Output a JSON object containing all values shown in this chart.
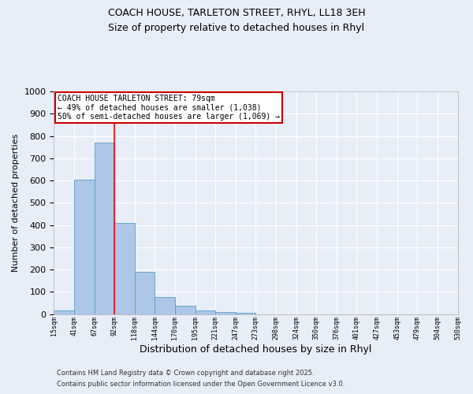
{
  "title_line1": "COACH HOUSE, TARLETON STREET, RHYL, LL18 3EH",
  "title_line2": "Size of property relative to detached houses in Rhyl",
  "xlabel": "Distribution of detached houses by size in Rhyl",
  "ylabel": "Number of detached properties",
  "bar_values": [
    15,
    605,
    770,
    410,
    190,
    78,
    38,
    18,
    10,
    5,
    0,
    0,
    0,
    0,
    0,
    0,
    0,
    0,
    0,
    0
  ],
  "bin_labels": [
    "15sqm",
    "41sqm",
    "67sqm",
    "92sqm",
    "118sqm",
    "144sqm",
    "170sqm",
    "195sqm",
    "221sqm",
    "247sqm",
    "273sqm",
    "298sqm",
    "324sqm",
    "350sqm",
    "376sqm",
    "401sqm",
    "427sqm",
    "453sqm",
    "479sqm",
    "504sqm",
    "530sqm"
  ],
  "bar_color": "#aec6e8",
  "bar_edge_color": "#5a9fc8",
  "bar_edge_width": 0.6,
  "background_color": "#e8eef8",
  "grid_color": "#ffffff",
  "red_line_x": 3.0,
  "ylim": [
    0,
    1000
  ],
  "yticks": [
    0,
    100,
    200,
    300,
    400,
    500,
    600,
    700,
    800,
    900,
    1000
  ],
  "annotation_text": "COACH HOUSE TARLETON STREET: 79sqm\n← 49% of detached houses are smaller (1,038)\n50% of semi-detached houses are larger (1,069) →",
  "annotation_box_color": "#ffffff",
  "annotation_border_color": "#cc0000",
  "footnote1": "Contains HM Land Registry data © Crown copyright and database right 2025.",
  "footnote2": "Contains public sector information licensed under the Open Government Licence v3.0."
}
